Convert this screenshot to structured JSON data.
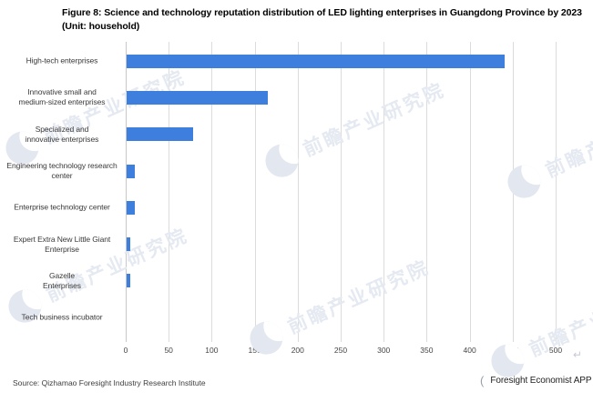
{
  "title": {
    "line1": "Figure 8: Science and technology reputation distribution of LED lighting enterprises in Guangdong Province by 2023",
    "line2": "(Unit: household)"
  },
  "chart_data": {
    "type": "bar",
    "orientation": "horizontal",
    "title": "Science and technology reputation distribution of LED lighting enterprises in Guangdong Province by 2023",
    "unit": "household",
    "categories": [
      "High-tech enterprises",
      "Innovative small and\nmedium-sized enterprises",
      "Specialized and\ninnovative enterprises",
      "Engineering technology research\ncenter",
      "Enterprise technology center",
      "Expert Extra New Little Giant\nEnterprise",
      "Gazelle\nEnterprises",
      "Tech business incubator"
    ],
    "values": [
      440,
      165,
      78,
      10,
      10,
      5,
      5,
      0
    ],
    "xlim": [
      0,
      500
    ],
    "xticks": [
      0,
      50,
      100,
      150,
      200,
      250,
      300,
      350,
      400,
      450,
      500
    ],
    "grid": true,
    "legend": null,
    "bar_color": "#3e7fdd",
    "gridline_color": "#dcdcdc"
  },
  "watermark": {
    "text": "前瞻产业研究院",
    "logo": "qianzhan-circle-logo"
  },
  "footer": {
    "source": "Source: Qizhamao Foresight Industry Research Institute",
    "brand": "Foresight Economist APP"
  },
  "icons": {
    "return_glyph": "↵",
    "brand_glyph": "("
  }
}
